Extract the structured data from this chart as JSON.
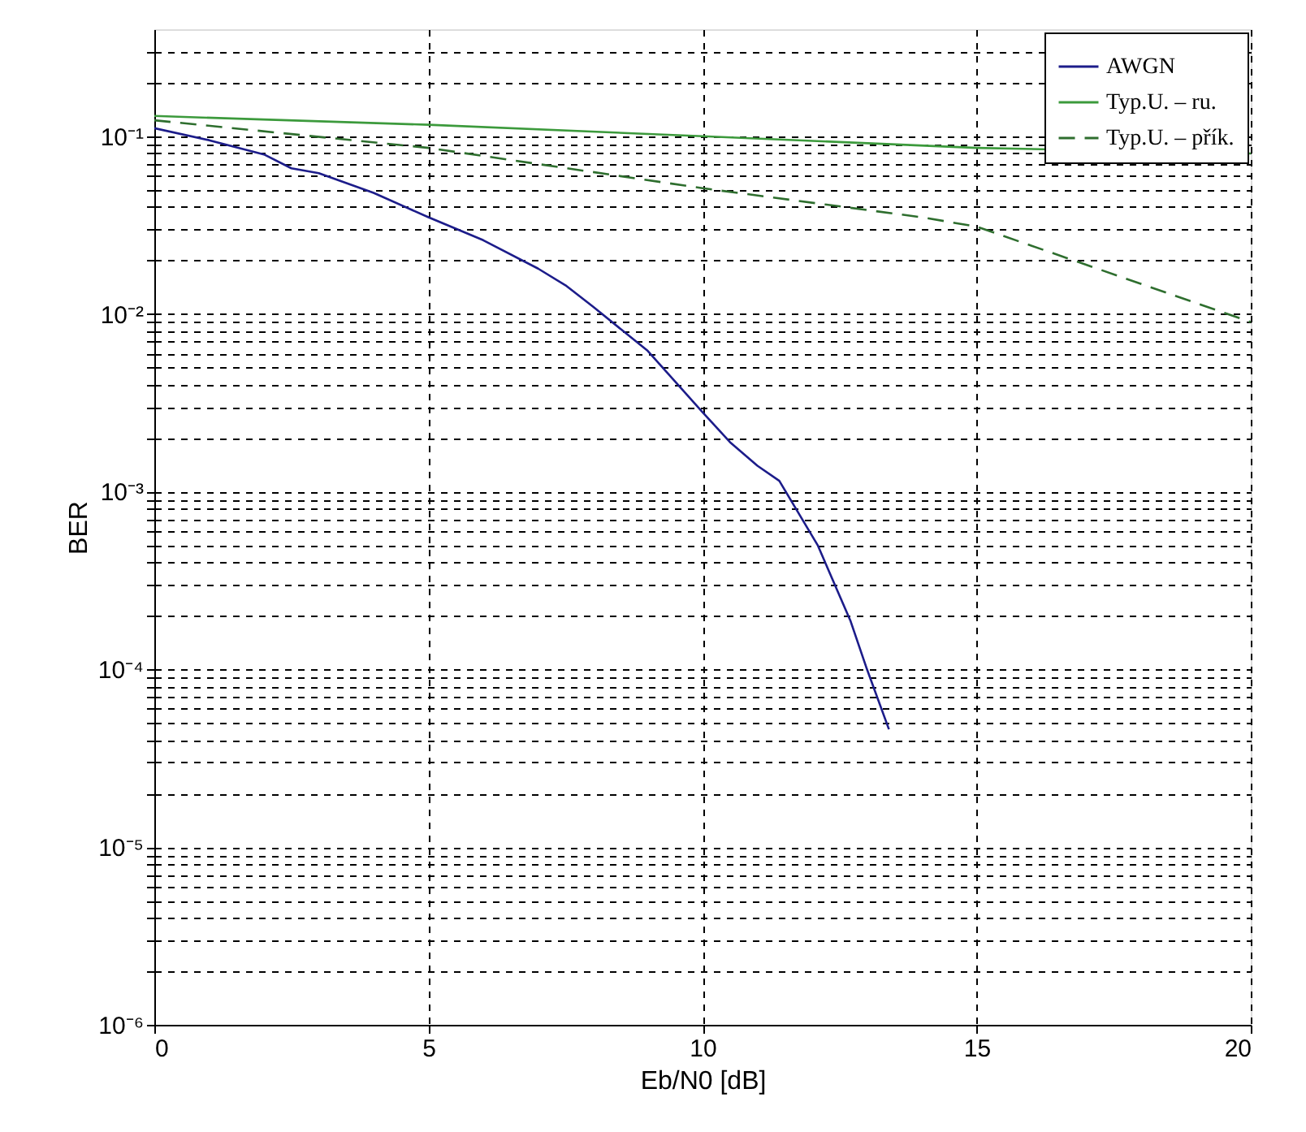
{
  "chart_data": {
    "type": "line",
    "xlabel": "Eb/N0 [dB]",
    "ylabel": "BER",
    "log": "y",
    "grid": true,
    "legend": "top right",
    "xlim": [
      0,
      20
    ],
    "ylim": [
      1e-06,
      0.4
    ],
    "xticks": [
      0,
      5,
      10,
      15,
      20
    ],
    "yticks": [
      {
        "value": 1e-06,
        "label": "10⁻⁶"
      },
      {
        "value": 2e-06,
        "label": null
      },
      {
        "value": 3e-06,
        "label": null
      },
      {
        "value": 4e-06,
        "label": null
      },
      {
        "value": 5e-06,
        "label": null
      },
      {
        "value": 6e-06,
        "label": null
      },
      {
        "value": 7e-06,
        "label": null
      },
      {
        "value": 8e-06,
        "label": null
      },
      {
        "value": 9e-06,
        "label": null
      },
      {
        "value": 1e-05,
        "label": "10⁻⁵"
      },
      {
        "value": 2e-05,
        "label": null
      },
      {
        "value": 3e-05,
        "label": null
      },
      {
        "value": 4e-05,
        "label": null
      },
      {
        "value": 5e-05,
        "label": null
      },
      {
        "value": 6e-05,
        "label": null
      },
      {
        "value": 7e-05,
        "label": null
      },
      {
        "value": 8e-05,
        "label": null
      },
      {
        "value": 9e-05,
        "label": null
      },
      {
        "value": 0.0001,
        "label": "10⁻⁴"
      },
      {
        "value": 0.0002,
        "label": null
      },
      {
        "value": 0.0003,
        "label": null
      },
      {
        "value": 0.0004,
        "label": null
      },
      {
        "value": 0.0005,
        "label": null
      },
      {
        "value": 0.0006,
        "label": null
      },
      {
        "value": 0.0007,
        "label": null
      },
      {
        "value": 0.0008,
        "label": null
      },
      {
        "value": 0.0009,
        "label": null
      },
      {
        "value": 0.001,
        "label": "10⁻³"
      },
      {
        "value": 0.002,
        "label": null
      },
      {
        "value": 0.003,
        "label": null
      },
      {
        "value": 0.004,
        "label": null
      },
      {
        "value": 0.005,
        "label": null
      },
      {
        "value": 0.006,
        "label": null
      },
      {
        "value": 0.007,
        "label": null
      },
      {
        "value": 0.008,
        "label": null
      },
      {
        "value": 0.009,
        "label": null
      },
      {
        "value": 0.01,
        "label": "10⁻²"
      },
      {
        "value": 0.02,
        "label": null
      },
      {
        "value": 0.03,
        "label": null
      },
      {
        "value": 0.04,
        "label": null
      },
      {
        "value": 0.05,
        "label": null
      },
      {
        "value": 0.06,
        "label": null
      },
      {
        "value": 0.07,
        "label": null
      },
      {
        "value": 0.08,
        "label": null
      },
      {
        "value": 0.09,
        "label": null
      },
      {
        "value": 0.1,
        "label": "10⁻¹"
      },
      {
        "value": 0.2,
        "label": null
      },
      {
        "value": 0.3,
        "label": null
      }
    ],
    "series": [
      {
        "name": "AWGN",
        "color": "#1c1c8a",
        "line_style": "solid",
        "x": [
          0,
          1,
          2,
          2.5,
          3,
          4,
          5,
          6,
          7,
          7.5,
          8,
          9,
          10,
          10.5,
          11,
          11.4,
          12.1,
          12.7,
          13,
          13.4
        ],
        "values": [
          0.111,
          0.095,
          0.079,
          0.066,
          0.062,
          0.048,
          0.035,
          0.026,
          0.018,
          0.0145,
          0.011,
          0.0062,
          0.0028,
          0.0019,
          0.0014,
          0.00115,
          0.0005,
          0.000187,
          0.0001,
          4.6e-05
        ]
      },
      {
        "name": "Typ.U. – ru.",
        "color": "#3c9a3c",
        "line_style": "solid",
        "x": [
          0,
          5,
          10,
          15,
          20
        ],
        "values": [
          0.13,
          0.116,
          0.1,
          0.086,
          0.08
        ]
      },
      {
        "name": "Typ.U. – přík.",
        "color": "#2e6e2e",
        "line_style": "dashed",
        "x": [
          0,
          5,
          10,
          14,
          15,
          20
        ],
        "values": [
          0.123,
          0.086,
          0.051,
          0.035,
          0.031,
          0.009
        ]
      }
    ]
  }
}
